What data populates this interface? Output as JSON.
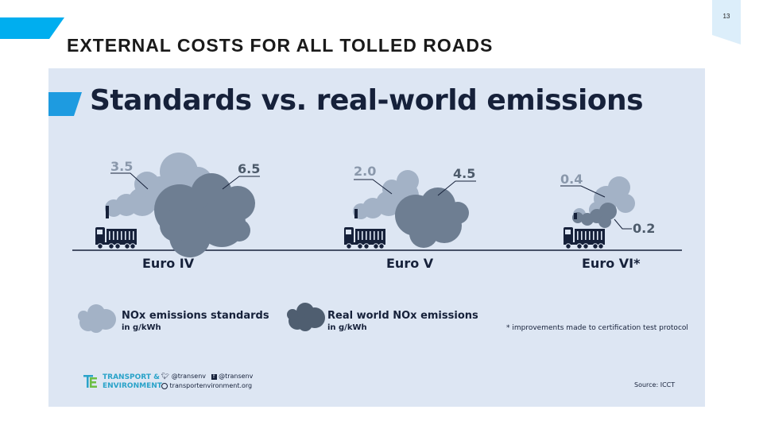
{
  "slide": {
    "title": "EXTERNAL COSTS FOR ALL TOLLED ROADS",
    "page_number": "13"
  },
  "infographic": {
    "title": "Standards vs. real-world emissions",
    "groups": [
      {
        "label": "Euro IV",
        "standard": "3.5",
        "real_world": "6.5"
      },
      {
        "label": "Euro V",
        "standard": "2.0",
        "real_world": "4.5"
      },
      {
        "label": "Euro VI*",
        "standard": "0.4",
        "real_world": "0.2"
      }
    ],
    "legend": {
      "standard_line1": "NOx emissions standards",
      "standard_line2": "in g/kWh",
      "real_line1": "Real world NOx emissions",
      "real_line2": "in g/kWh"
    },
    "footnote": "* improvements made to certification test protocol",
    "brand": {
      "line1": "TRANSPORT &",
      "line2": "ENVIRONMENT"
    },
    "social": {
      "twitter": "@transenv",
      "facebook": "@transenv",
      "website": "transportenvironment.org"
    },
    "source": "Source: ICCT"
  },
  "colors": {
    "accent": "#1e9be0",
    "panel_background": "#dde6f3",
    "standard_cloud": "#a3b2c6",
    "real_cloud": "#6e7e92",
    "truck": "#16213a",
    "brand": "#2aa3c9"
  },
  "icons": [
    "truck-icon",
    "cloud-icon",
    "twitter-icon",
    "facebook-icon",
    "globe-icon"
  ]
}
